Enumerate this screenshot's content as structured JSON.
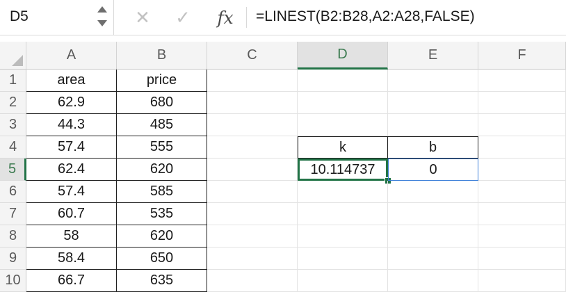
{
  "formula_bar": {
    "name_box": "D5",
    "formula": "=LINEST(B2:B28,A2:A28,FALSE)",
    "icons": {
      "name_box_stepper": "up-down-stepper-icon",
      "cancel": "cancel-icon",
      "enter": "checkmark-icon",
      "function": "fx-icon"
    },
    "cancel_glyph": "✕",
    "enter_glyph": "✓",
    "fx_glyph": "fx"
  },
  "grid": {
    "columns": [
      "A",
      "B",
      "C",
      "D",
      "E",
      "F"
    ],
    "active_column": "D",
    "active_row": "5",
    "rows": [
      {
        "num": "1",
        "cells": {
          "A": "area",
          "B": "price",
          "C": "",
          "D": "",
          "E": "",
          "F": ""
        }
      },
      {
        "num": "2",
        "cells": {
          "A": "62.9",
          "B": "680",
          "C": "",
          "D": "",
          "E": "",
          "F": ""
        }
      },
      {
        "num": "3",
        "cells": {
          "A": "44.3",
          "B": "485",
          "C": "",
          "D": "",
          "E": "",
          "F": ""
        }
      },
      {
        "num": "4",
        "cells": {
          "A": "57.4",
          "B": "555",
          "C": "",
          "D": "k",
          "E": "b",
          "F": ""
        }
      },
      {
        "num": "5",
        "cells": {
          "A": "62.4",
          "B": "620",
          "C": "",
          "D": "10.114737",
          "E": "0",
          "F": ""
        }
      },
      {
        "num": "6",
        "cells": {
          "A": "57.4",
          "B": "585",
          "C": "",
          "D": "",
          "E": "",
          "F": ""
        }
      },
      {
        "num": "7",
        "cells": {
          "A": "60.7",
          "B": "535",
          "C": "",
          "D": "",
          "E": "",
          "F": ""
        }
      },
      {
        "num": "8",
        "cells": {
          "A": "58",
          "B": "620",
          "C": "",
          "D": "",
          "E": "",
          "F": ""
        }
      },
      {
        "num": "9",
        "cells": {
          "A": "58.4",
          "B": "650",
          "C": "",
          "D": "",
          "E": "",
          "F": ""
        }
      },
      {
        "num": "10",
        "cells": {
          "A": "66.7",
          "B": "635",
          "C": "",
          "D": "",
          "E": "",
          "F": ""
        }
      }
    ]
  },
  "colors": {
    "selection_green": "#217346",
    "range_blue": "#3c7fd9",
    "header_bg": "#f4f4f4"
  }
}
